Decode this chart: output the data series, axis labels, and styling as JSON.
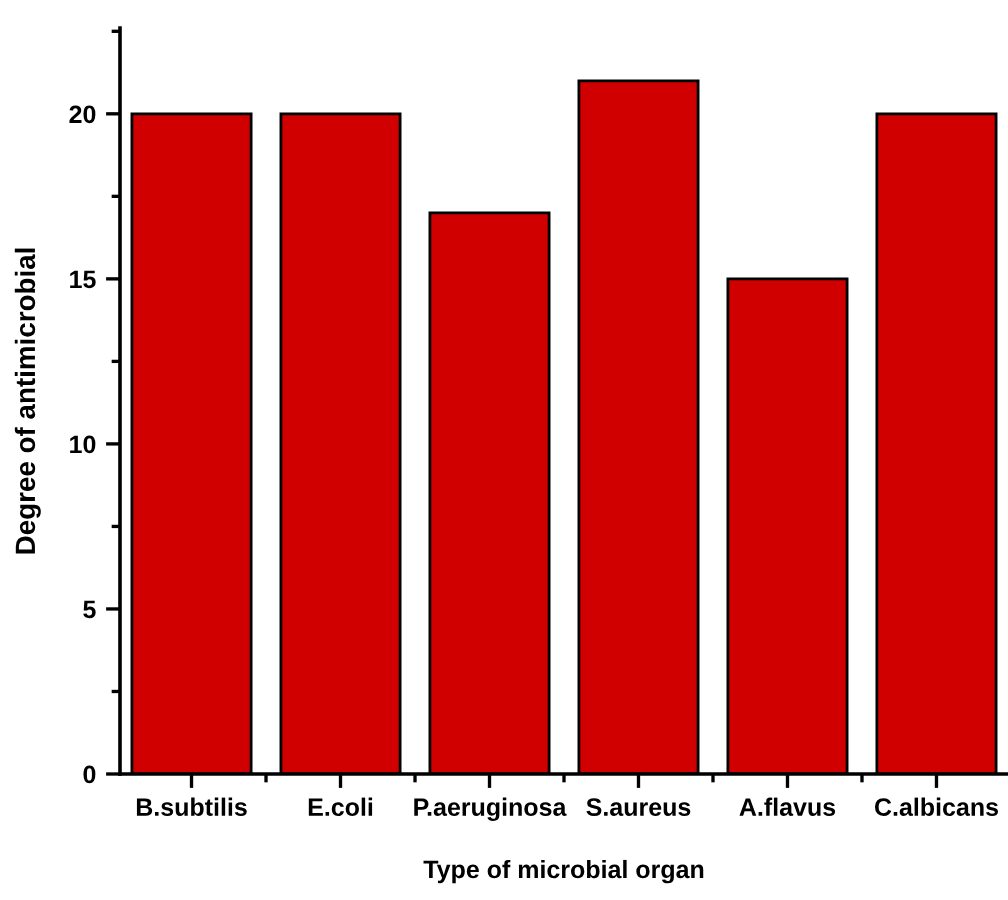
{
  "chart_data": {
    "type": "bar",
    "xlabel": "Type of microbial organ",
    "ylabel": "Degree of antimicrobial",
    "categories": [
      "B.subtilis",
      "E.coli",
      "P.aeruginosa",
      "S.aureus",
      "A.flavus",
      "C.albicans"
    ],
    "values": [
      20,
      20,
      17,
      21,
      15,
      20
    ],
    "color": "#d00000",
    "ylim": [
      0,
      22.6
    ],
    "yticks": [
      0,
      5,
      10,
      15,
      20
    ],
    "grid": false,
    "legend": false
  }
}
